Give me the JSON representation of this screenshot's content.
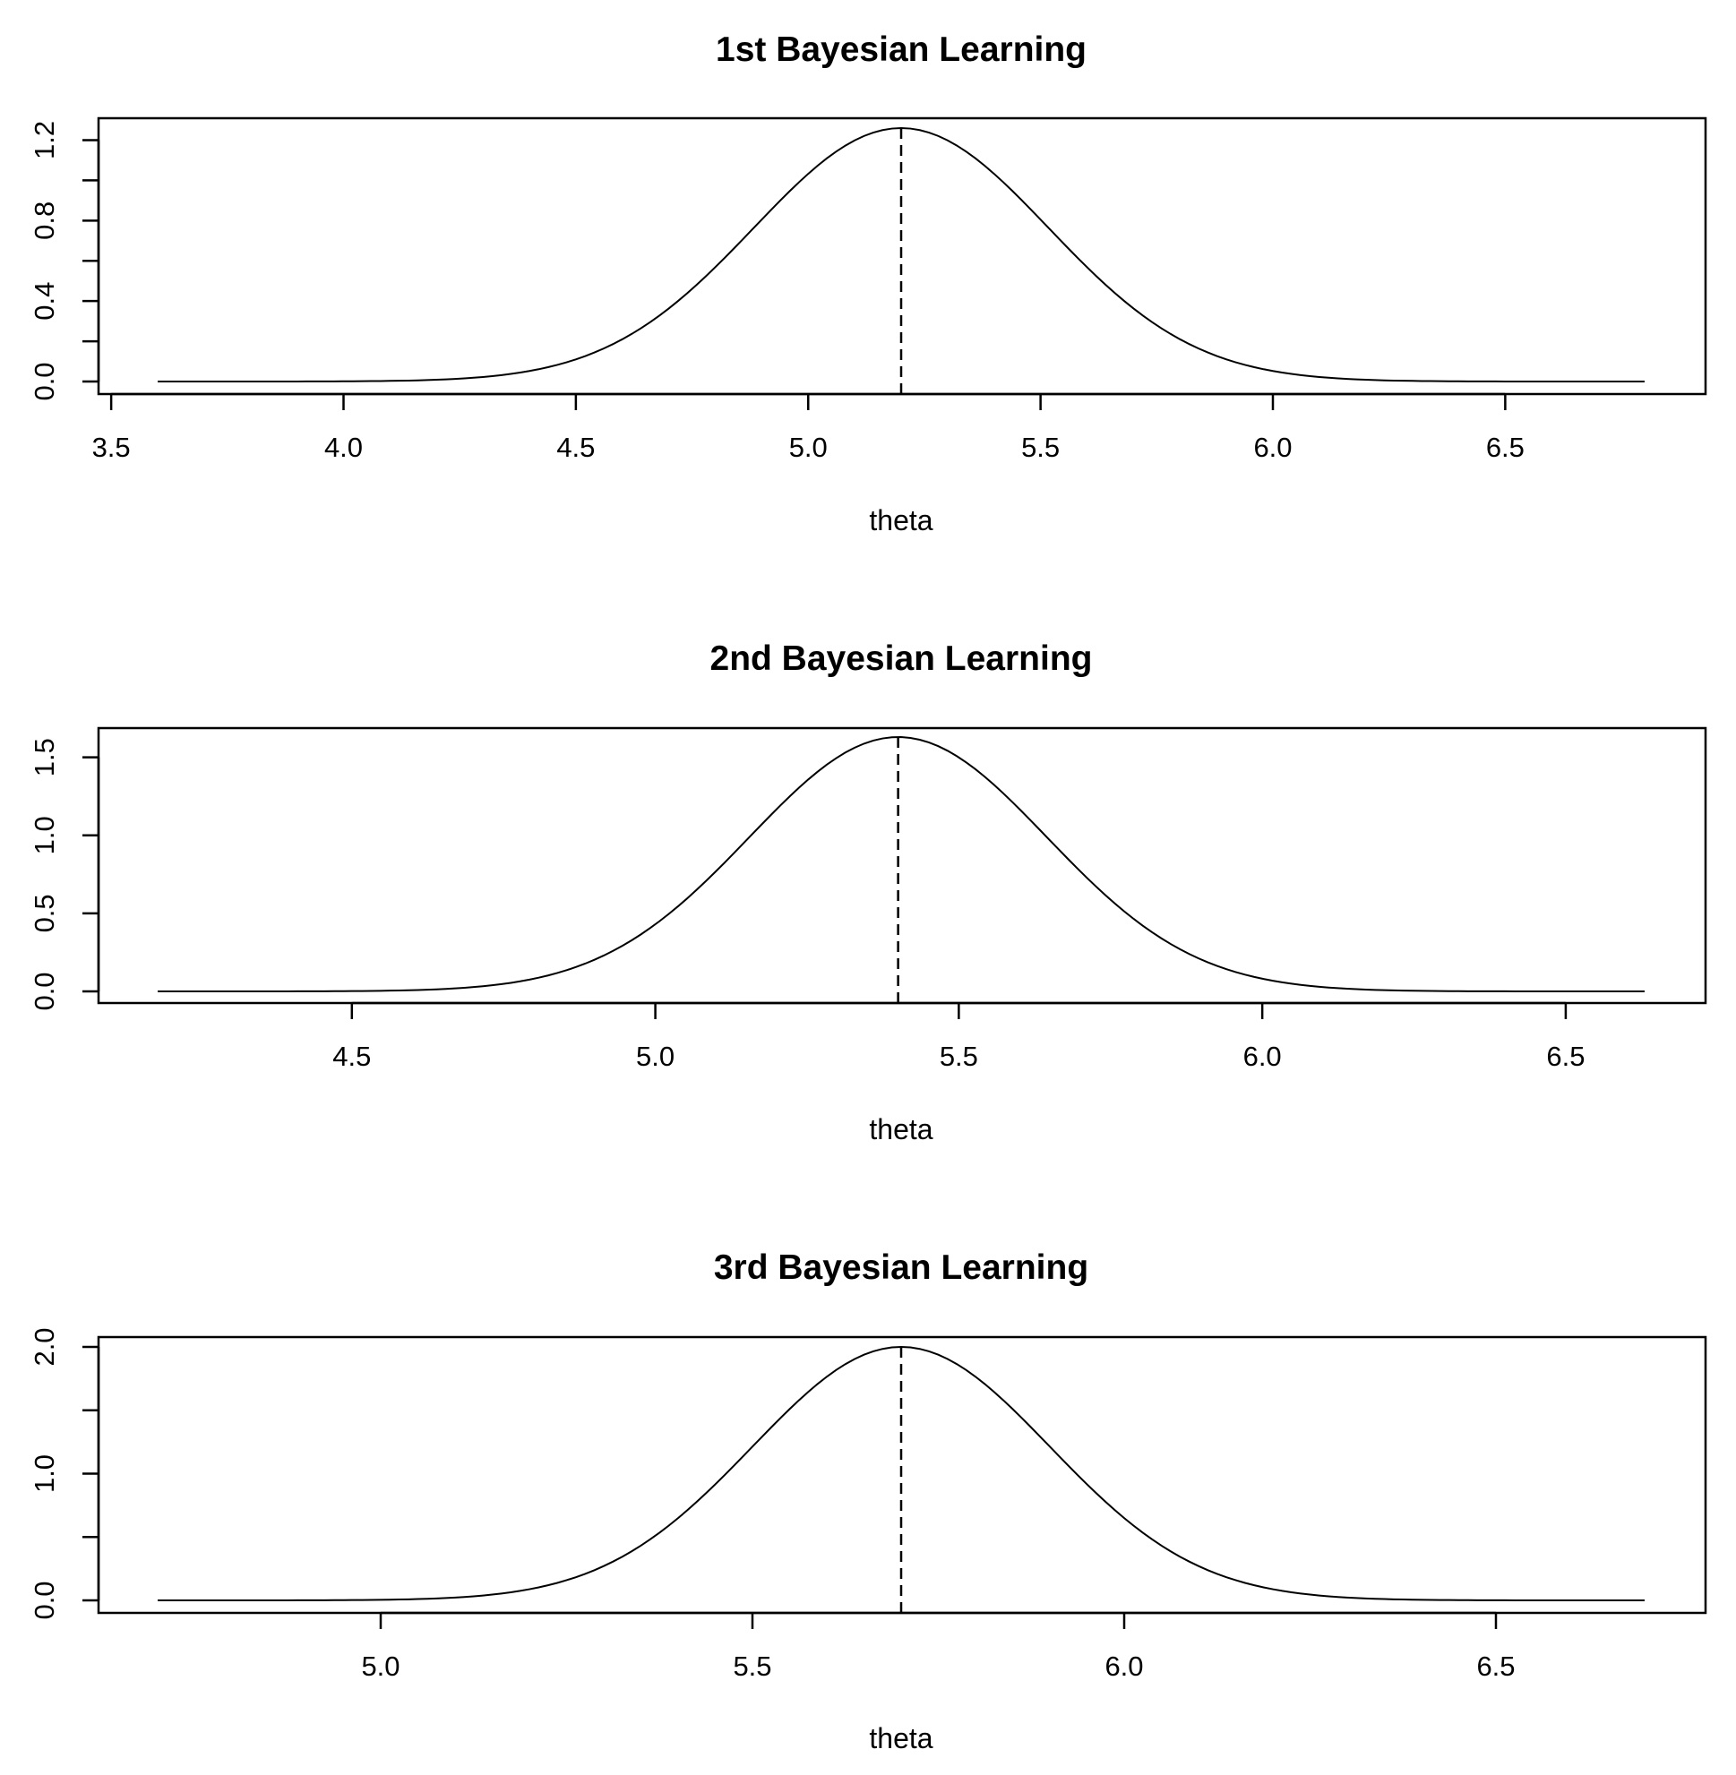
{
  "chart_data": [
    {
      "type": "line",
      "title": "1st Bayesian Learning",
      "xlabel": "theta",
      "ylabel": "",
      "xlim": [
        3.6,
        6.8
      ],
      "ylim": [
        0,
        1.26
      ],
      "xticks": [
        "3.5",
        "4.0",
        "4.5",
        "5.0",
        "5.5",
        "6.0",
        "6.5"
      ],
      "yticks": [
        "0.0",
        "0.4",
        "0.8",
        "1.2"
      ],
      "minor_yticks": [
        0.2,
        0.6,
        1.0
      ],
      "grid": false,
      "mean": 5.2,
      "sd": 0.317,
      "vline": {
        "x": 5.2,
        "style": "dashed"
      },
      "series": [
        {
          "x_range": [
            3.6,
            6.8
          ],
          "peak": 1.26,
          "style": "solid"
        }
      ]
    },
    {
      "type": "line",
      "title": "2nd Bayesian Learning",
      "xlabel": "theta",
      "ylabel": "",
      "xlim": [
        4.18,
        6.63
      ],
      "ylim": [
        0,
        1.63
      ],
      "xticks": [
        "4.5",
        "5.0",
        "5.5",
        "6.0",
        "6.5"
      ],
      "yticks": [
        "0.0",
        "0.5",
        "1.0",
        "1.5"
      ],
      "minor_yticks": [],
      "grid": false,
      "mean": 5.4,
      "sd": 0.245,
      "vline": {
        "x": 5.4,
        "style": "dashed"
      },
      "series": [
        {
          "x_range": [
            4.18,
            6.63
          ],
          "peak": 1.63,
          "style": "solid"
        }
      ]
    },
    {
      "type": "line",
      "title": "3rd Bayesian Learning",
      "xlabel": "theta",
      "ylabel": "",
      "xlim": [
        4.7,
        6.7
      ],
      "ylim": [
        0,
        2.0
      ],
      "xticks": [
        "5.0",
        "5.5",
        "6.0",
        "6.5"
      ],
      "yticks": [
        "0.0",
        "1.0",
        "2.0"
      ],
      "minor_yticks": [
        0.5,
        1.5
      ],
      "grid": false,
      "mean": 5.7,
      "sd": 0.2,
      "vline": {
        "x": 5.7,
        "style": "dashed"
      },
      "series": [
        {
          "x_range": [
            4.7,
            6.7
          ],
          "peak": 2.0,
          "style": "solid"
        }
      ]
    }
  ]
}
